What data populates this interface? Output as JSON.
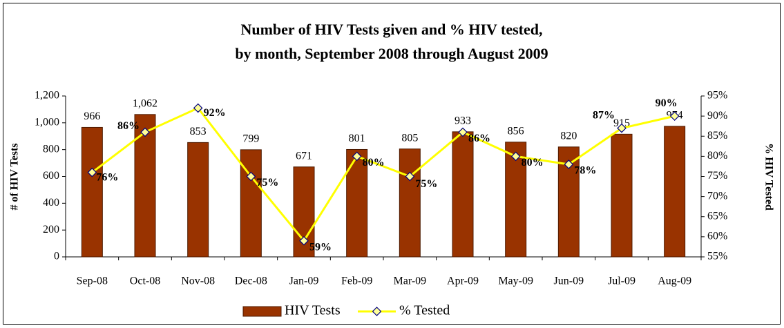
{
  "chart_data": {
    "type": "bar",
    "title": [
      "Number of HIV Tests given and % HIV tested,",
      "by month, September 2008 through August 2009"
    ],
    "ylabel": "# of HIV Tests",
    "y2label": "% HIV Tested",
    "categories": [
      "Sep-08",
      "Oct-08",
      "Nov-08",
      "Dec-08",
      "Jan-09",
      "Feb-09",
      "Mar-09",
      "Apr-09",
      "May-09",
      "Jun-09",
      "Jul-09",
      "Aug-09"
    ],
    "series": [
      {
        "name": "HIV Tests",
        "type": "bar",
        "color": "#993300",
        "values": [
          966,
          1062,
          853,
          799,
          671,
          801,
          805,
          933,
          856,
          820,
          915,
          974
        ],
        "value_labels": [
          "966",
          "1,062",
          "853",
          "799",
          "671",
          "801",
          "805",
          "933",
          "856",
          "820",
          "915",
          "974"
        ]
      },
      {
        "name": "% Tested",
        "type": "line",
        "axis": "y2",
        "color": "#ffff00",
        "values": [
          76,
          86,
          92,
          75,
          59,
          80,
          75,
          86,
          80,
          78,
          87,
          90
        ],
        "value_labels": [
          "76%",
          "86%",
          "92%",
          "75%",
          "59%",
          "80%",
          "75%",
          "86%",
          "80%",
          "78%",
          "87%",
          "90%"
        ]
      }
    ],
    "ylim": [
      0,
      1200
    ],
    "yticks": [
      0,
      200,
      400,
      600,
      800,
      {
        "value": 1000,
        "label": "1,000"
      },
      {
        "value": 1200,
        "label": "1,200"
      }
    ],
    "y2lim": [
      55,
      95
    ],
    "y2ticks": [
      {
        "value": 55,
        "label": "55%"
      },
      {
        "value": 60,
        "label": "60%"
      },
      {
        "value": 65,
        "label": "65%"
      },
      {
        "value": 70,
        "label": "70%"
      },
      {
        "value": 75,
        "label": "75%"
      },
      {
        "value": 80,
        "label": "80%"
      },
      {
        "value": 85,
        "label": "85%"
      },
      {
        "value": 90,
        "label": "90%"
      },
      {
        "value": 95,
        "label": "95%"
      }
    ],
    "legend": "bottom"
  }
}
